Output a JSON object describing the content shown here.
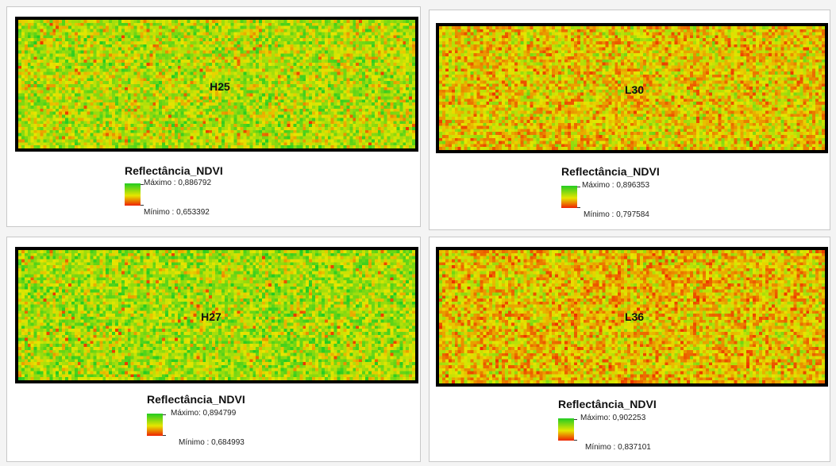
{
  "color_ramp": {
    "high": "#22cc22",
    "mid": "#e6e600",
    "low": "#ee2200"
  },
  "panels": [
    {
      "plot_label": "H25",
      "legend": {
        "title": "Reflectância_NDVI",
        "max_label": "Máximo : 0,886792",
        "min_label": "Mínimo : 0,653392"
      },
      "raster_value_range": [
        0.653392,
        0.886792
      ]
    },
    {
      "plot_label": "L30",
      "legend": {
        "title": "Reflectância_NDVI",
        "max_label": "Máximo : 0,896353",
        "min_label": "Mínimo : 0,797584"
      },
      "raster_value_range": [
        0.797584,
        0.896353
      ]
    },
    {
      "plot_label": "H27",
      "legend": {
        "title": "Reflectância_NDVI",
        "max_label": "Máximo: 0,894799",
        "min_label": "Mínimo : 0,684993"
      },
      "raster_value_range": [
        0.684993,
        0.894799
      ]
    },
    {
      "plot_label": "L36",
      "legend": {
        "title": "Reflectância_NDVI",
        "max_label": "Máximo: 0,902253",
        "min_label": "Mínimo : 0,837101"
      },
      "raster_value_range": [
        0.837101,
        0.902253
      ]
    }
  ]
}
